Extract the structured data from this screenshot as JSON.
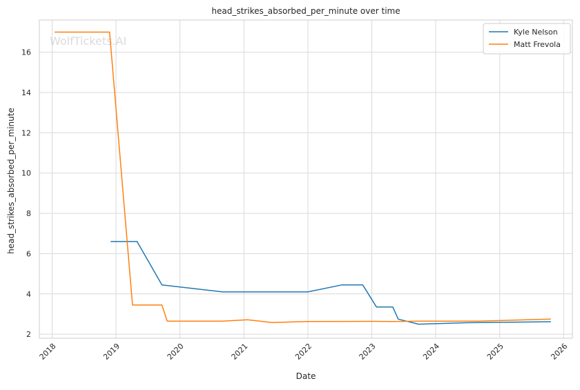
{
  "chart_data": {
    "type": "line",
    "title": "head_strikes_absorbed_per_minute over time",
    "xlabel": "Date",
    "ylabel": "head_strikes_absorbed_per_minute",
    "watermark": "WolfTickets.AI",
    "grid": true,
    "legend_position": "top-right",
    "xlim": [
      "2017-10-20",
      "2026-02-20"
    ],
    "ylim": [
      1.8,
      17.6
    ],
    "x_ticks": [
      "2018-01-01",
      "2019-01-01",
      "2020-01-01",
      "2021-01-01",
      "2022-01-01",
      "2023-01-01",
      "2024-01-01",
      "2025-01-01",
      "2026-01-01"
    ],
    "x_tick_labels": [
      "2018",
      "2019",
      "2020",
      "2021",
      "2022",
      "2023",
      "2024",
      "2025",
      "2026"
    ],
    "y_ticks": [
      2,
      4,
      6,
      8,
      10,
      12,
      14,
      16
    ],
    "y_tick_labels": [
      "2",
      "4",
      "6",
      "8",
      "10",
      "12",
      "14",
      "16"
    ],
    "series": [
      {
        "name": "Kyle Nelson",
        "color": "#1f77b4",
        "x": [
          "2018-12-01",
          "2019-05-01",
          "2019-09-20",
          "2020-09-01",
          "2022-01-01",
          "2022-07-15",
          "2022-11-10",
          "2023-01-28",
          "2023-05-01",
          "2023-06-01",
          "2023-09-25",
          "2024-07-01",
          "2025-10-20"
        ],
        "y": [
          6.6,
          6.6,
          4.45,
          4.1,
          4.1,
          4.45,
          4.45,
          3.35,
          3.35,
          2.75,
          2.5,
          2.57,
          2.62
        ]
      },
      {
        "name": "Matt Frevola",
        "color": "#ff7f0e",
        "x": [
          "2018-01-15",
          "2018-11-25",
          "2019-04-05",
          "2019-09-20",
          "2019-10-20",
          "2020-09-01",
          "2021-01-20",
          "2021-06-10",
          "2022-01-01",
          "2023-01-01",
          "2023-05-01",
          "2023-10-01",
          "2024-09-01",
          "2025-10-20"
        ],
        "y": [
          17.0,
          17.0,
          3.45,
          3.45,
          2.65,
          2.65,
          2.72,
          2.58,
          2.63,
          2.64,
          2.63,
          2.65,
          2.65,
          2.75
        ]
      }
    ]
  }
}
